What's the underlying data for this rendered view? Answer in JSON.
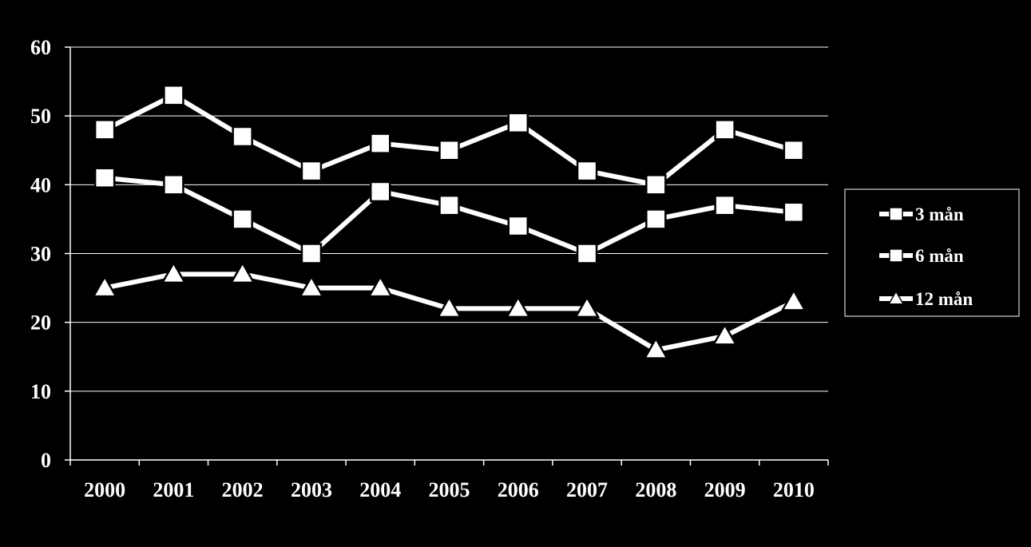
{
  "chart_data": {
    "type": "line",
    "categories": [
      "2000",
      "2001",
      "2002",
      "2003",
      "2004",
      "2005",
      "2006",
      "2007",
      "2008",
      "2009",
      "2010"
    ],
    "series": [
      {
        "name": "3 mån",
        "marker": "square",
        "values": [
          48,
          53,
          47,
          42,
          46,
          45,
          49,
          42,
          40,
          48,
          45
        ]
      },
      {
        "name": "6 mån",
        "marker": "square",
        "values": [
          41,
          40,
          35,
          30,
          39,
          37,
          34,
          30,
          35,
          37,
          36
        ]
      },
      {
        "name": "12 mån",
        "marker": "triangle",
        "values": [
          25,
          27,
          27,
          25,
          25,
          22,
          22,
          22,
          16,
          18,
          23
        ]
      }
    ],
    "ylim": [
      0,
      60
    ],
    "yticks": [
      0,
      10,
      20,
      30,
      40,
      50,
      60
    ],
    "grid": true,
    "legend_position": "right",
    "colors": {
      "background": "#000000",
      "foreground": "#ffffff"
    }
  }
}
